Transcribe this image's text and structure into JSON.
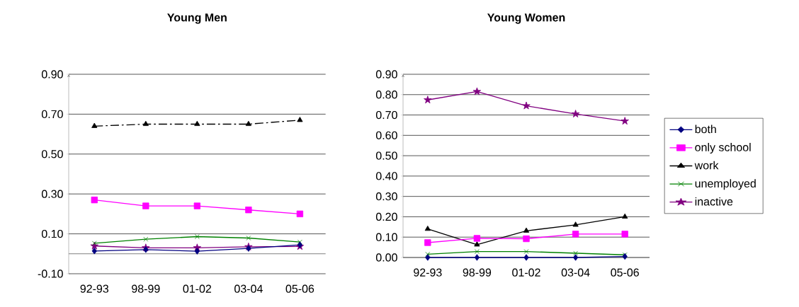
{
  "chart_data": [
    {
      "type": "line",
      "title": "Young Men",
      "categories": [
        "92-93",
        "98-99",
        "01-02",
        "03-04",
        "05-06"
      ],
      "ylim": [
        -0.1,
        0.9
      ],
      "yticks": [
        {
          "value": -0.1,
          "label": "-0.10"
        },
        {
          "value": 0.1,
          "label": "0.10"
        },
        {
          "value": 0.3,
          "label": "0.30"
        },
        {
          "value": 0.5,
          "label": "0.50"
        },
        {
          "value": 0.7,
          "label": "0.70"
        },
        {
          "value": 0.9,
          "label": "0.90"
        }
      ],
      "grid": "y",
      "legend": false,
      "series": [
        {
          "color": "#000080",
          "marker": "diamond",
          "values": [
            0.014,
            0.021,
            0.013,
            0.027,
            0.045
          ]
        },
        {
          "color": "#ff00ff",
          "marker": "square",
          "values": [
            0.27,
            0.24,
            0.24,
            0.22,
            0.2
          ]
        },
        {
          "color": "#000000",
          "marker": "triangle",
          "line_style": "dashed",
          "values": [
            0.64,
            0.65,
            0.65,
            0.65,
            0.67
          ]
        },
        {
          "color": "#008000",
          "marker": "cross",
          "values": [
            0.053,
            0.073,
            0.086,
            0.079,
            0.059
          ]
        },
        {
          "color": "#800080",
          "marker": "star",
          "values": [
            0.039,
            0.03,
            0.03,
            0.035,
            0.037
          ]
        }
      ]
    },
    {
      "type": "line",
      "title": "Young Women",
      "categories": [
        "92-93",
        "98-99",
        "01-02",
        "03-04",
        "05-06"
      ],
      "ylim": [
        0,
        0.9
      ],
      "yticks": [
        {
          "value": 0,
          "label": "0.00"
        },
        {
          "value": 0.1,
          "label": "0.10"
        },
        {
          "value": 0.2,
          "label": "0.20"
        },
        {
          "value": 0.3,
          "label": "0.30"
        },
        {
          "value": 0.4,
          "label": "0.40"
        },
        {
          "value": 0.5,
          "label": "0.50"
        },
        {
          "value": 0.6,
          "label": "0.60"
        },
        {
          "value": 0.7,
          "label": "0.70"
        },
        {
          "value": 0.8,
          "label": "0.80"
        },
        {
          "value": 0.9,
          "label": "0.90"
        }
      ],
      "grid": "y",
      "legend": "right",
      "series": [
        {
          "name": "both",
          "color": "#000080",
          "marker": "diamond",
          "values": [
            0.0,
            0.0,
            0.0,
            0.0,
            0.005
          ]
        },
        {
          "name": "only school",
          "color": "#ff00ff",
          "marker": "square",
          "values": [
            0.073,
            0.094,
            0.092,
            0.115,
            0.115
          ]
        },
        {
          "name": "work",
          "color": "#000000",
          "marker": "triangle",
          "values": [
            0.14,
            0.063,
            0.131,
            0.16,
            0.2
          ]
        },
        {
          "name": "unemployed",
          "color": "#008000",
          "marker": "cross",
          "values": [
            0.016,
            0.029,
            0.029,
            0.021,
            0.013
          ]
        },
        {
          "name": "inactive",
          "color": "#800080",
          "marker": "star",
          "values": [
            0.774,
            0.815,
            0.745,
            0.705,
            0.67
          ]
        }
      ]
    }
  ]
}
